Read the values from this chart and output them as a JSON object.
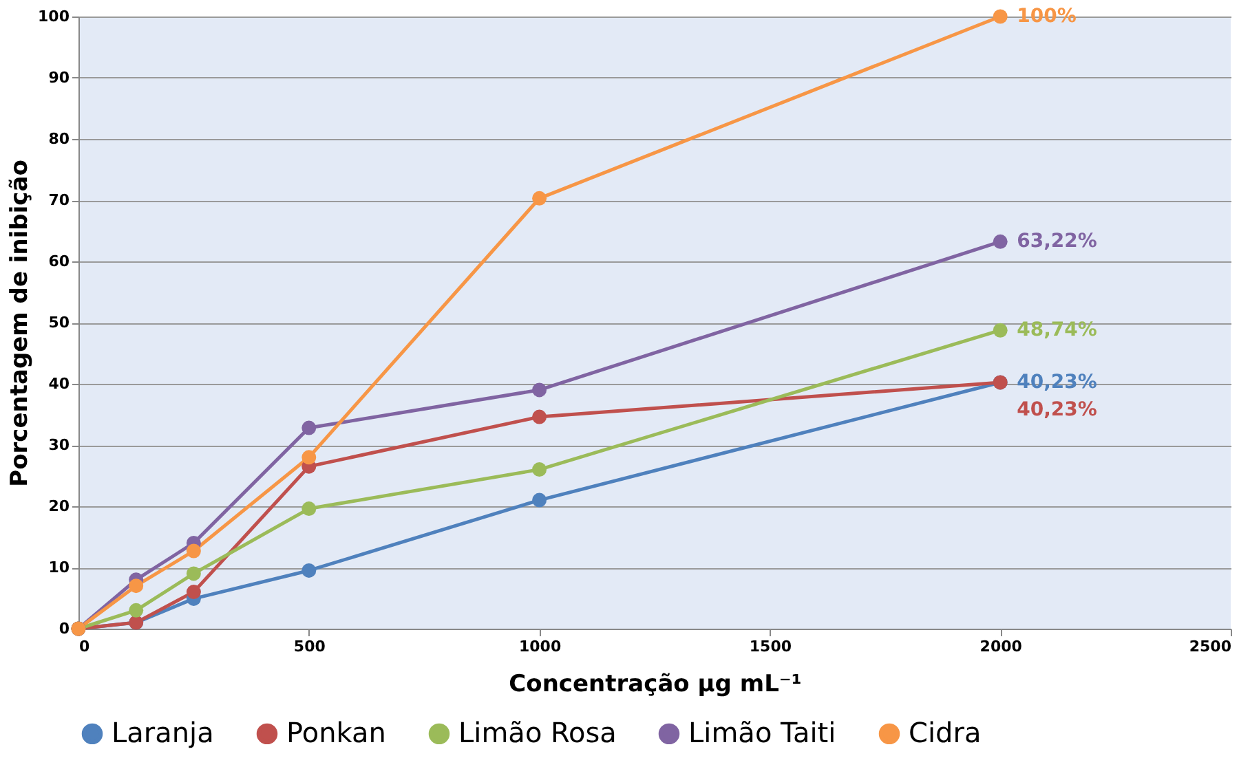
{
  "chart_data": {
    "type": "line",
    "xlabel": "Concentração μg mL⁻¹",
    "ylabel": "Porcentagem de inibição",
    "x": [
      0,
      125,
      250,
      500,
      1000,
      2000
    ],
    "series": [
      {
        "name": "Laranja",
        "color": "#4f81bd",
        "values": [
          0,
          1,
          4.9,
          9.5,
          21,
          40.23
        ],
        "value_labels": [
          null,
          null,
          null,
          null,
          null,
          "40,23%"
        ]
      },
      {
        "name": "Ponkan",
        "color": "#c0504d",
        "values": [
          0,
          1,
          6,
          26.5,
          34.6,
          40.23
        ],
        "value_labels": [
          null,
          null,
          null,
          null,
          null,
          "40,23%"
        ]
      },
      {
        "name": "Limão Rosa",
        "color": "#9bbb59",
        "values": [
          0,
          3,
          9,
          19.6,
          26,
          48.74
        ],
        "value_labels": [
          null,
          null,
          null,
          null,
          null,
          "48,74%"
        ]
      },
      {
        "name": "Limão Taiti",
        "color": "#8064a2",
        "values": [
          0,
          8,
          14,
          32.8,
          39,
          63.22
        ],
        "value_labels": [
          null,
          null,
          null,
          null,
          null,
          "63,22%"
        ]
      },
      {
        "name": "Cidra",
        "color": "#f79646",
        "values": [
          0,
          7,
          12.7,
          28,
          70.3,
          100
        ],
        "value_labels": [
          null,
          null,
          null,
          null,
          null,
          "100%"
        ]
      }
    ],
    "xlim": [
      0,
      2500
    ],
    "xticks": [
      0,
      500,
      1000,
      1500,
      2000,
      2500
    ],
    "ylim": [
      0,
      100
    ],
    "yticks": [
      0,
      10,
      20,
      30,
      40,
      50,
      60,
      70,
      80,
      90,
      100
    ],
    "grid": "y",
    "legend": "bottom",
    "marker": "circle",
    "line_style": "solid"
  }
}
